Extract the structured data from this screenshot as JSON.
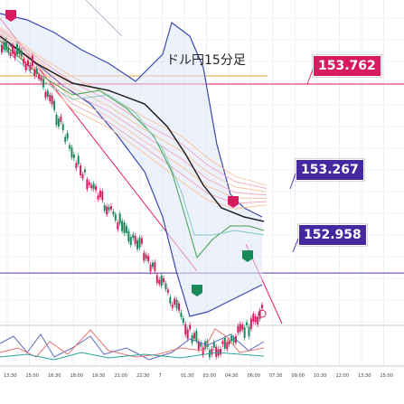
{
  "chart_data": {
    "type": "line",
    "title": "ドル円15分足",
    "price_tags": [
      {
        "value": "153.762",
        "color": "#d81b60"
      },
      {
        "value": "153.267",
        "color": "#4527a0"
      },
      {
        "value": "152.958",
        "color": "#4527a0"
      }
    ],
    "x_tick_labels": [
      "13:30",
      "15:00",
      "16:30",
      "18:00",
      "19:30",
      "21:00",
      "22:30",
      "7",
      "01:30",
      "03:00",
      "04:30",
      "06:00",
      "07:30",
      "09:00",
      "10:30",
      "12:00",
      "13:30",
      "15:00"
    ],
    "series": [
      {
        "name": "",
        "values": [
          153.72,
          153.7,
          153.66,
          153.55,
          153.42,
          153.33,
          153.26,
          153.2,
          153.15,
          153.06,
          152.97,
          152.88,
          152.84,
          152.86,
          152.9,
          152.96
        ]
      }
    ],
    "colors": {
      "candle_up": "#1b8a5a",
      "candle_down": "#d81b60",
      "bollinger": "#3949ab",
      "sma": "#222222",
      "pink_line": "#e91e63",
      "purple_line": "#5e35b1"
    }
  }
}
